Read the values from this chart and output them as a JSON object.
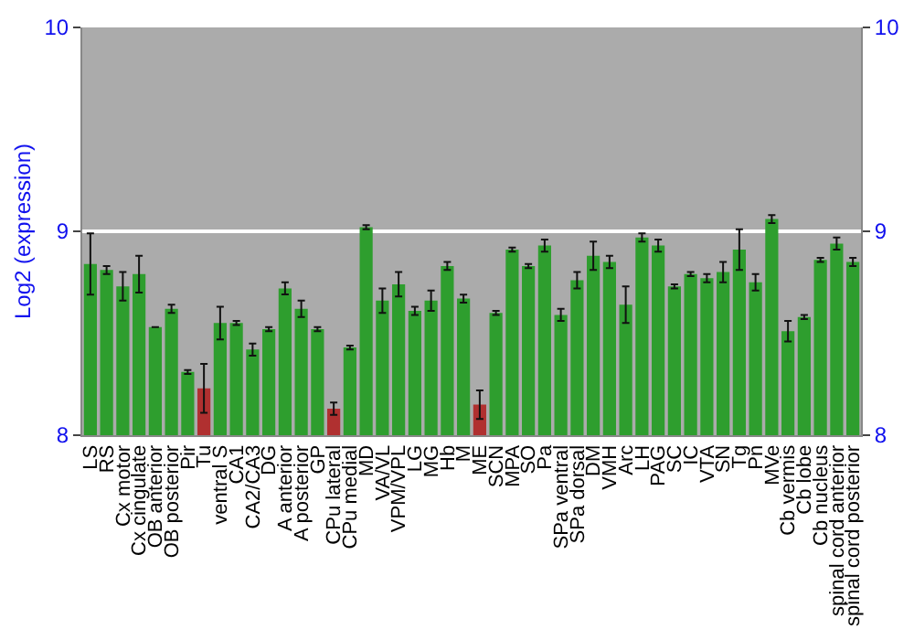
{
  "chart_data": {
    "type": "bar",
    "ylabel": "Log2 (expression)",
    "categories": [
      "LS",
      "RS",
      "Cx motor",
      "Cx cingulate",
      "OB anterior",
      "OB posterior",
      "Pir",
      "Tu",
      "ventral S",
      "CA1",
      "CA2/CA3",
      "DG",
      "A anterior",
      "A posterior",
      "GP",
      "CPu lateral",
      "CPu medial",
      "MD",
      "VA/VL",
      "VPM/VPL",
      "LG",
      "MG",
      "Hb",
      "M",
      "ME",
      "SCN",
      "MPA",
      "SO",
      "Pa",
      "SPa ventral",
      "SPa dorsal",
      "DM",
      "VMH",
      "Arc",
      "LH",
      "PAG",
      "SC",
      "IC",
      "VTA",
      "SN",
      "Tg",
      "Pn",
      "MVe",
      "Cb vermis",
      "Cb lobe",
      "Cb nucleus",
      "spinal cord anterior",
      "spinal cord posterior"
    ],
    "values": [
      8.84,
      8.81,
      8.73,
      8.79,
      8.53,
      8.62,
      8.31,
      8.23,
      8.55,
      8.55,
      8.42,
      8.52,
      8.72,
      8.62,
      8.52,
      8.13,
      8.43,
      9.02,
      8.66,
      8.74,
      8.61,
      8.66,
      8.83,
      8.67,
      8.15,
      8.6,
      8.91,
      8.83,
      8.93,
      8.59,
      8.76,
      8.88,
      8.85,
      8.64,
      8.97,
      8.93,
      8.73,
      8.79,
      8.77,
      8.8,
      8.91,
      8.75,
      9.06,
      8.51,
      8.58,
      8.86,
      8.94,
      8.85
    ],
    "errors": [
      0.15,
      0.02,
      0.07,
      0.09,
      null,
      0.02,
      0.01,
      0.12,
      0.08,
      0.01,
      0.03,
      0.01,
      0.03,
      0.04,
      0.01,
      0.03,
      0.01,
      0.01,
      0.06,
      0.06,
      0.02,
      0.05,
      0.02,
      0.02,
      0.07,
      0.01,
      0.01,
      0.01,
      0.03,
      0.03,
      0.04,
      0.07,
      0.03,
      0.09,
      0.02,
      0.03,
      0.01,
      0.01,
      0.02,
      0.05,
      0.1,
      0.04,
      0.02,
      0.05,
      0.01,
      0.01,
      0.03,
      0.02
    ],
    "colors": [
      "#2e9e2e",
      "#2e9e2e",
      "#2e9e2e",
      "#2e9e2e",
      "#2e9e2e",
      "#2e9e2e",
      "#2e9e2e",
      "#b03030",
      "#2e9e2e",
      "#2e9e2e",
      "#2e9e2e",
      "#2e9e2e",
      "#2e9e2e",
      "#2e9e2e",
      "#2e9e2e",
      "#b03030",
      "#2e9e2e",
      "#2e9e2e",
      "#2e9e2e",
      "#2e9e2e",
      "#2e9e2e",
      "#2e9e2e",
      "#2e9e2e",
      "#2e9e2e",
      "#b03030",
      "#2e9e2e",
      "#2e9e2e",
      "#2e9e2e",
      "#2e9e2e",
      "#2e9e2e",
      "#2e9e2e",
      "#2e9e2e",
      "#2e9e2e",
      "#2e9e2e",
      "#2e9e2e",
      "#2e9e2e",
      "#2e9e2e",
      "#2e9e2e",
      "#2e9e2e",
      "#2e9e2e",
      "#2e9e2e",
      "#2e9e2e",
      "#2e9e2e",
      "#2e9e2e",
      "#2e9e2e",
      "#2e9e2e",
      "#2e9e2e",
      "#2e9e2e"
    ],
    "ylim": [
      8,
      10
    ],
    "yticks": [
      8,
      9,
      10
    ],
    "y2lim": [
      8,
      10
    ],
    "y2ticks": [
      8,
      9,
      10
    ],
    "grid": "y"
  }
}
